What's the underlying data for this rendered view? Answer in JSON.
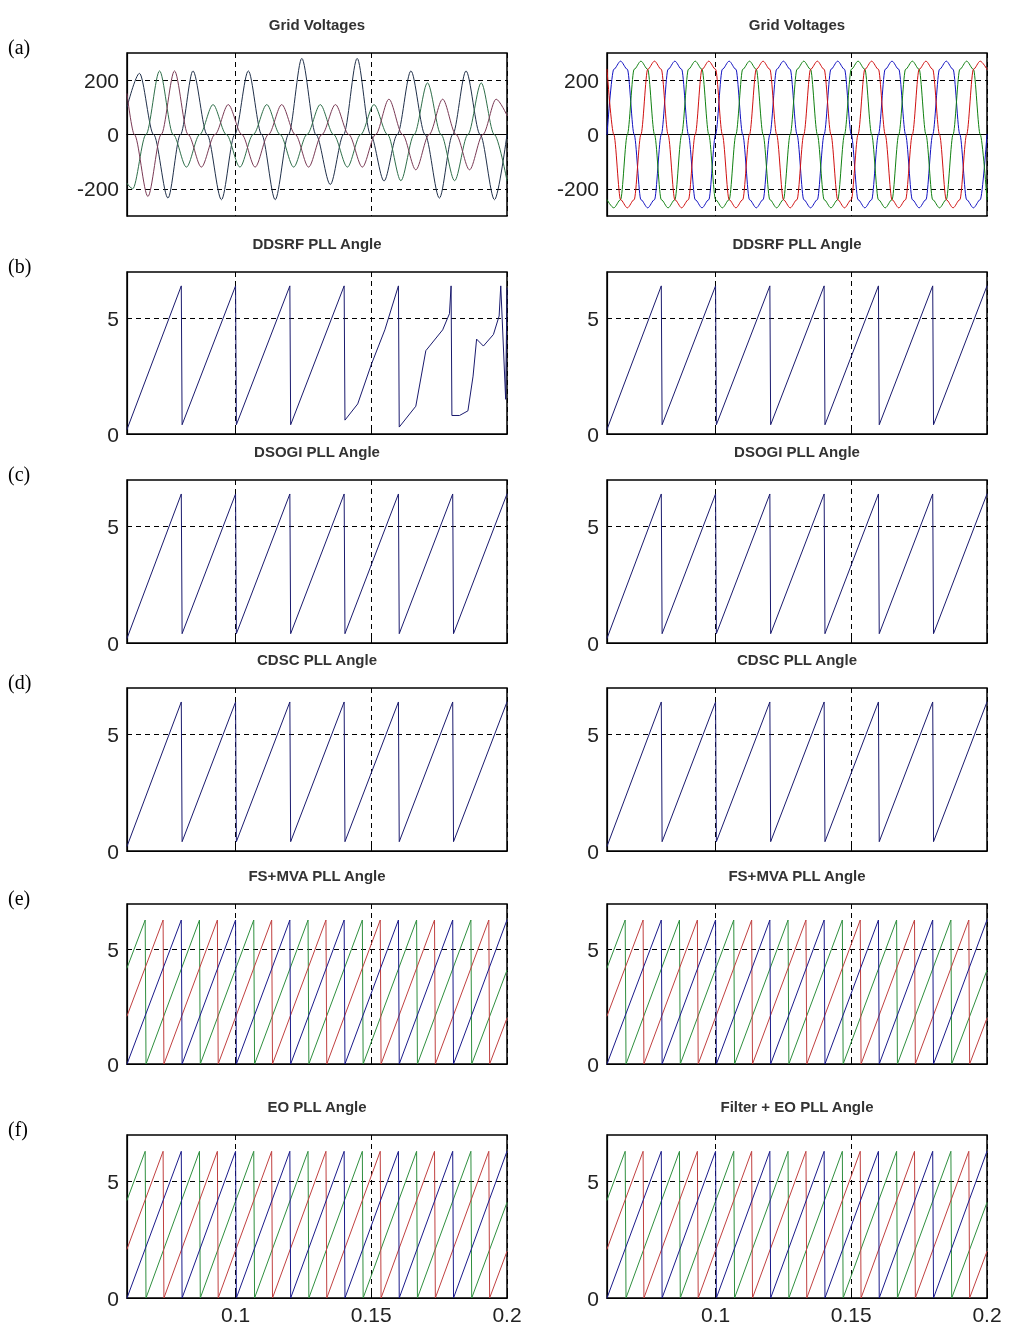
{
  "chart_data": [
    {
      "type": "line",
      "title": "Grid Voltages",
      "annotations": [
        "(a)"
      ],
      "xlim": [
        0.06,
        0.2
      ],
      "xticks": [
        0.1,
        0.15,
        0.2
      ],
      "ylim": [
        -300,
        300
      ],
      "yticks": [
        -200,
        0,
        200
      ],
      "grid": true,
      "tick_labels": "y",
      "series": [
        {
          "color": "#20304a",
          "x": [
            0.06,
            0.0646,
            0.0698,
            0.0751,
            0.0797,
            0.0843,
            0.0895,
            0.0948,
            0.0997,
            0.1047,
            0.1096,
            0.1146,
            0.1195,
            0.1244,
            0.1296,
            0.1349,
            0.1398,
            0.1448,
            0.1497,
            0.1547,
            0.1596,
            0.1646,
            0.1698,
            0.1751,
            0.18,
            0.1849,
            0.1901,
            0.1954,
            0.2
          ],
          "values": [
            100,
            225,
            0,
            -234,
            0,
            234,
            0,
            -240,
            0,
            234,
            0,
            -240,
            0,
            280,
            0,
            -184,
            0,
            280,
            0,
            -171,
            0,
            234,
            0,
            -234,
            0,
            234,
            0,
            -240,
            0
          ]
        },
        {
          "color": "#2f6f4a",
          "x": [
            0.06,
            0.0621,
            0.067,
            0.072,
            0.077,
            0.0819,
            0.0868,
            0.0917,
            0.0966,
            0.1016,
            0.1065,
            0.1115,
            0.1164,
            0.1214,
            0.1263,
            0.1312,
            0.1361,
            0.1412,
            0.1461,
            0.151,
            0.156,
            0.1609,
            0.1658,
            0.1707,
            0.1757,
            0.1807,
            0.1856,
            0.1905,
            0.1953,
            0.2
          ],
          "values": [
            -180,
            -200,
            0,
            234,
            0,
            -120,
            0,
            110,
            0,
            -120,
            0,
            110,
            0,
            -120,
            0,
            110,
            0,
            -120,
            0,
            110,
            0,
            -170,
            0,
            190,
            0,
            -170,
            0,
            190,
            0,
            -170
          ]
        },
        {
          "color": "#7a3a55",
          "x": [
            0.06,
            0.0627,
            0.0677,
            0.0726,
            0.0775,
            0.0825,
            0.0874,
            0.0924,
            0.0973,
            0.1023,
            0.1072,
            0.1121,
            0.117,
            0.122,
            0.1269,
            0.1318,
            0.1368,
            0.1417,
            0.1467,
            0.1516,
            0.1565,
            0.1615,
            0.1664,
            0.1713,
            0.1763,
            0.1812,
            0.1862,
            0.1911,
            0.196,
            0.2
          ],
          "values": [
            150,
            0,
            -228,
            0,
            234,
            0,
            -120,
            0,
            110,
            0,
            -120,
            0,
            110,
            0,
            -120,
            0,
            110,
            0,
            -120,
            0,
            130,
            0,
            -130,
            0,
            130,
            0,
            -130,
            0,
            130,
            70
          ]
        }
      ]
    },
    {
      "type": "line",
      "title": "Grid Voltages",
      "xlim": [
        0.06,
        0.2
      ],
      "xticks": [
        0.1,
        0.15,
        0.2
      ],
      "ylim": [
        -300,
        300
      ],
      "yticks": [
        -200,
        0,
        200
      ],
      "grid": true,
      "tick_labels": "y",
      "x": [
        0.06,
        0.0625,
        0.065,
        0.0675,
        0.07,
        0.0725,
        0.075,
        0.0775,
        0.08,
        0.0825,
        0.085,
        0.0875,
        0.09,
        0.0925,
        0.095,
        0.0975,
        0.1,
        0.1025,
        0.105,
        0.1075,
        0.11,
        0.1125,
        0.115,
        0.1175,
        0.12,
        0.1225,
        0.125,
        0.1275,
        0.13,
        0.1325,
        0.135,
        0.1375,
        0.14,
        0.1425,
        0.145,
        0.1475,
        0.15,
        0.1525,
        0.155,
        0.1575,
        0.16,
        0.1625,
        0.165,
        0.1675,
        0.17,
        0.1725,
        0.175,
        0.1775,
        0.18,
        0.1825,
        0.185,
        0.1875,
        0.19,
        0.1925,
        0.195,
        0.1975,
        0.2
      ],
      "series": [
        {
          "color": "#1010c0",
          "values": [
            0,
            240,
            270,
            240,
            0,
            -240,
            -270,
            -240,
            0,
            240,
            270,
            240,
            0,
            -240,
            -270,
            -240,
            0,
            240,
            270,
            240,
            0,
            -240,
            -270,
            -240,
            0,
            240,
            270,
            240,
            0,
            -240,
            -270,
            -240,
            0,
            240,
            270,
            240,
            0,
            -240,
            -270,
            -240,
            0,
            240,
            270,
            240,
            0,
            -240,
            -270,
            -240,
            0,
            240,
            270,
            240,
            0,
            -240,
            -270,
            -240,
            0
          ]
        },
        {
          "color": "#108010",
          "values": [
            -240,
            -270,
            -240,
            0,
            240,
            270,
            240,
            0,
            -240,
            -270,
            -240,
            0,
            240,
            270,
            240,
            0,
            -240,
            -270,
            -240,
            0,
            240,
            270,
            240,
            0,
            -240,
            -270,
            -240,
            0,
            240,
            270,
            240,
            0,
            -240,
            -270,
            -240,
            0,
            240,
            270,
            240,
            0,
            -240,
            -270,
            -240,
            0,
            240,
            270,
            240,
            0,
            -240,
            -270,
            -240,
            0,
            240,
            270,
            240,
            0,
            -240
          ]
        },
        {
          "color": "#d01010",
          "values": [
            240,
            0,
            -240,
            -270,
            -240,
            0,
            240,
            270,
            240,
            0,
            -240,
            -270,
            -240,
            0,
            240,
            270,
            240,
            0,
            -240,
            -270,
            -240,
            0,
            240,
            270,
            240,
            0,
            -240,
            -270,
            -240,
            0,
            240,
            270,
            240,
            0,
            -240,
            -270,
            -240,
            0,
            240,
            270,
            240,
            0,
            -240,
            -270,
            -240,
            0,
            240,
            270,
            240,
            0,
            -240,
            -270,
            -240,
            0,
            240,
            270,
            240
          ]
        }
      ]
    },
    {
      "type": "line",
      "title": "DDSRF PLL Angle",
      "annotations": [
        "(b)"
      ],
      "xlim": [
        0.06,
        0.2
      ],
      "xticks": [
        0.1,
        0.15,
        0.2
      ],
      "ylim": [
        0,
        7
      ],
      "yticks": [
        0,
        5
      ],
      "grid": true,
      "tick_labels": "y",
      "series": [
        {
          "color": "#1a1a6e",
          "x": [
            0.06,
            0.08,
            0.0803,
            0.1,
            0.1003,
            0.12,
            0.1203,
            0.14,
            0.1403,
            0.145,
            0.15,
            0.155,
            0.16,
            0.1603,
            0.1664,
            0.1701,
            0.1763,
            0.1788,
            0.1794,
            0.1797,
            0.1825,
            0.1856,
            0.1875,
            0.1888,
            0.1913,
            0.195,
            0.1971,
            0.1977,
            0.1995,
            0.2
          ],
          "values": [
            0.2,
            6.4,
            0.4,
            6.4,
            0.4,
            6.4,
            0.4,
            6.4,
            0.6,
            1.3,
            3.0,
            4.5,
            6.4,
            0.3,
            1.2,
            3.6,
            4.5,
            5.2,
            6.4,
            0.8,
            0.8,
            1.0,
            2.5,
            4.1,
            3.8,
            4.3,
            5.1,
            6.4,
            1.5,
            6.3
          ]
        }
      ]
    },
    {
      "type": "line",
      "title": "DDSRF PLL Angle",
      "xlim": [
        0.06,
        0.2
      ],
      "xticks": [
        0.1,
        0.15,
        0.2
      ],
      "ylim": [
        0,
        7
      ],
      "yticks": [
        0,
        5
      ],
      "grid": true,
      "tick_labels": "y",
      "series": [
        {
          "color": "#1a1a6e",
          "x": [
            0.06,
            0.08,
            0.0803,
            0.1,
            0.1003,
            0.12,
            0.1203,
            0.14,
            0.1403,
            0.16,
            0.1603,
            0.18,
            0.1803,
            0.2
          ],
          "values": [
            0.2,
            6.4,
            0.4,
            6.4,
            0.4,
            6.4,
            0.4,
            6.4,
            0.4,
            6.4,
            0.4,
            6.4,
            0.4,
            6.4
          ]
        }
      ]
    },
    {
      "type": "line",
      "title": "DSOGI PLL Angle",
      "annotations": [
        "(c)"
      ],
      "xlim": [
        0.06,
        0.2
      ],
      "xticks": [
        0.1,
        0.15,
        0.2
      ],
      "ylim": [
        0,
        7
      ],
      "yticks": [
        0,
        5
      ],
      "grid": true,
      "tick_labels": "y",
      "series": [
        {
          "color": "#1a1a6e",
          "x": [
            0.06,
            0.08,
            0.0803,
            0.1,
            0.1003,
            0.12,
            0.1203,
            0.14,
            0.1403,
            0.16,
            0.1603,
            0.18,
            0.1803,
            0.2
          ],
          "values": [
            0.2,
            6.4,
            0.4,
            6.4,
            0.4,
            6.4,
            0.4,
            6.4,
            0.4,
            6.4,
            0.4,
            6.4,
            0.4,
            6.4
          ]
        }
      ]
    },
    {
      "type": "line",
      "title": "DSOGI PLL Angle",
      "xlim": [
        0.06,
        0.2
      ],
      "xticks": [
        0.1,
        0.15,
        0.2
      ],
      "ylim": [
        0,
        7
      ],
      "yticks": [
        0,
        5
      ],
      "grid": true,
      "tick_labels": "y",
      "series": [
        {
          "color": "#1a1a6e",
          "x": [
            0.06,
            0.08,
            0.0803,
            0.1,
            0.1003,
            0.12,
            0.1203,
            0.14,
            0.1403,
            0.16,
            0.1603,
            0.18,
            0.1803,
            0.2
          ],
          "values": [
            0.2,
            6.4,
            0.4,
            6.4,
            0.4,
            6.4,
            0.4,
            6.4,
            0.4,
            6.4,
            0.4,
            6.4,
            0.4,
            6.4
          ]
        }
      ]
    },
    {
      "type": "line",
      "title": "CDSC PLL Angle",
      "annotations": [
        "(d)"
      ],
      "xlim": [
        0.06,
        0.2
      ],
      "xticks": [
        0.1,
        0.15,
        0.2
      ],
      "ylim": [
        0,
        7
      ],
      "yticks": [
        0,
        5
      ],
      "grid": true,
      "tick_labels": "y",
      "series": [
        {
          "color": "#1a1a6e",
          "x": [
            0.06,
            0.08,
            0.0803,
            0.1,
            0.1003,
            0.12,
            0.1203,
            0.14,
            0.1403,
            0.16,
            0.1603,
            0.18,
            0.1803,
            0.2
          ],
          "values": [
            0.2,
            6.4,
            0.4,
            6.4,
            0.4,
            6.4,
            0.4,
            6.4,
            0.4,
            6.4,
            0.4,
            6.4,
            0.4,
            6.4
          ]
        }
      ]
    },
    {
      "type": "line",
      "title": "CDSC PLL Angle",
      "xlim": [
        0.06,
        0.2
      ],
      "xticks": [
        0.1,
        0.15,
        0.2
      ],
      "ylim": [
        0,
        7
      ],
      "yticks": [
        0,
        5
      ],
      "grid": true,
      "tick_labels": "y",
      "series": [
        {
          "color": "#1a1a6e",
          "x": [
            0.06,
            0.08,
            0.0803,
            0.1,
            0.1003,
            0.12,
            0.1203,
            0.14,
            0.1403,
            0.16,
            0.1603,
            0.18,
            0.1803,
            0.2
          ],
          "values": [
            0.2,
            6.4,
            0.4,
            6.4,
            0.4,
            6.4,
            0.4,
            6.4,
            0.4,
            6.4,
            0.4,
            6.4,
            0.4,
            6.4
          ]
        }
      ]
    },
    {
      "type": "line",
      "title": "FS+MVA PLL Angle",
      "annotations": [
        "(e)"
      ],
      "xlim": [
        0.06,
        0.2
      ],
      "xticks": [
        0.1,
        0.15,
        0.2
      ],
      "ylim": [
        0,
        7
      ],
      "yticks": [
        0,
        5
      ],
      "grid": true,
      "tick_labels": "y",
      "series": [
        {
          "color": "#2f8f3f",
          "x": [
            0.06,
            0.0667,
            0.067,
            0.0867,
            0.087,
            0.1067,
            0.107,
            0.1267,
            0.127,
            0.1467,
            0.147,
            0.1667,
            0.167,
            0.1867,
            0.187,
            0.2
          ],
          "values": [
            4.2,
            6.3,
            0,
            6.3,
            0,
            6.3,
            0,
            6.3,
            0,
            6.3,
            0,
            6.3,
            0,
            6.3,
            0,
            4.1
          ]
        },
        {
          "color": "#c04040",
          "x": [
            0.06,
            0.0733,
            0.0736,
            0.0933,
            0.0936,
            0.1133,
            0.1136,
            0.1333,
            0.1336,
            0.1533,
            0.1536,
            0.1733,
            0.1736,
            0.1933,
            0.1936,
            0.2
          ],
          "values": [
            2.1,
            6.3,
            0,
            6.3,
            0,
            6.3,
            0,
            6.3,
            0,
            6.3,
            0,
            6.3,
            0,
            6.3,
            0,
            2.0
          ]
        },
        {
          "color": "#1a1a8a",
          "x": [
            0.06,
            0.08,
            0.0803,
            0.1,
            0.1003,
            0.12,
            0.1203,
            0.14,
            0.1403,
            0.16,
            0.1603,
            0.18,
            0.1803,
            0.2
          ],
          "values": [
            0,
            6.3,
            0,
            6.3,
            0,
            6.3,
            0,
            6.3,
            0,
            6.3,
            0,
            6.3,
            0,
            6.3
          ]
        }
      ]
    },
    {
      "type": "line",
      "title": "FS+MVA PLL Angle",
      "xlim": [
        0.06,
        0.2
      ],
      "xticks": [
        0.1,
        0.15,
        0.2
      ],
      "ylim": [
        0,
        7
      ],
      "yticks": [
        0,
        5
      ],
      "grid": true,
      "tick_labels": "y",
      "series": [
        {
          "color": "#2f8f3f",
          "x": [
            0.06,
            0.0667,
            0.067,
            0.0867,
            0.087,
            0.1067,
            0.107,
            0.1267,
            0.127,
            0.1467,
            0.147,
            0.1667,
            0.167,
            0.1867,
            0.187,
            0.2
          ],
          "values": [
            4.2,
            6.3,
            0,
            6.3,
            0,
            6.3,
            0,
            6.3,
            0,
            6.3,
            0,
            6.3,
            0,
            6.3,
            0,
            4.1
          ]
        },
        {
          "color": "#c04040",
          "x": [
            0.06,
            0.0733,
            0.0736,
            0.0933,
            0.0936,
            0.1133,
            0.1136,
            0.1333,
            0.1336,
            0.1533,
            0.1536,
            0.1733,
            0.1736,
            0.1933,
            0.1936,
            0.2
          ],
          "values": [
            2.1,
            6.3,
            0,
            6.3,
            0,
            6.3,
            0,
            6.3,
            0,
            6.3,
            0,
            6.3,
            0,
            6.3,
            0,
            2.0
          ]
        },
        {
          "color": "#1a1a8a",
          "x": [
            0.06,
            0.08,
            0.0803,
            0.1,
            0.1003,
            0.12,
            0.1203,
            0.14,
            0.1403,
            0.16,
            0.1603,
            0.18,
            0.1803,
            0.2
          ],
          "values": [
            0,
            6.3,
            0,
            6.3,
            0,
            6.3,
            0,
            6.3,
            0,
            6.3,
            0,
            6.3,
            0,
            6.3
          ]
        }
      ]
    },
    {
      "type": "line",
      "title": "EO PLL Angle",
      "annotations": [
        "(f)"
      ],
      "xlim": [
        0.06,
        0.2
      ],
      "xticks": [
        0.1,
        0.15,
        0.2
      ],
      "ylim": [
        0,
        7
      ],
      "yticks": [
        0,
        5
      ],
      "grid": true,
      "series": [
        {
          "color": "#2f8f3f",
          "x": [
            0.06,
            0.0667,
            0.067,
            0.0867,
            0.087,
            0.1067,
            0.107,
            0.1267,
            0.127,
            0.1467,
            0.147,
            0.1667,
            0.167,
            0.1867,
            0.187,
            0.2
          ],
          "values": [
            4.2,
            6.3,
            0,
            6.3,
            0,
            6.3,
            0,
            6.3,
            0,
            6.3,
            0,
            6.3,
            0,
            6.3,
            0,
            4.1
          ]
        },
        {
          "color": "#c04040",
          "x": [
            0.06,
            0.0733,
            0.0736,
            0.0933,
            0.0936,
            0.1133,
            0.1136,
            0.1333,
            0.1336,
            0.1533,
            0.1536,
            0.1733,
            0.1736,
            0.1933,
            0.1936,
            0.2
          ],
          "values": [
            2.1,
            6.3,
            0,
            6.3,
            0,
            6.3,
            0,
            6.3,
            0,
            6.3,
            0,
            6.3,
            0,
            6.3,
            0,
            2.0
          ]
        },
        {
          "color": "#1a1a8a",
          "x": [
            0.06,
            0.08,
            0.0803,
            0.1,
            0.1003,
            0.12,
            0.1203,
            0.14,
            0.1403,
            0.16,
            0.1603,
            0.18,
            0.1803,
            0.2
          ],
          "values": [
            0,
            6.3,
            0,
            6.3,
            0,
            6.3,
            0,
            6.3,
            0,
            6.3,
            0,
            6.3,
            0,
            6.3
          ]
        }
      ]
    },
    {
      "type": "line",
      "title": "Filter + EO PLL Angle",
      "xlim": [
        0.06,
        0.2
      ],
      "xticks": [
        0.1,
        0.15,
        0.2
      ],
      "ylim": [
        0,
        7
      ],
      "yticks": [
        0,
        5
      ],
      "grid": true,
      "series": [
        {
          "color": "#2f8f3f",
          "x": [
            0.06,
            0.0667,
            0.067,
            0.0867,
            0.087,
            0.1067,
            0.107,
            0.1267,
            0.127,
            0.1467,
            0.147,
            0.1667,
            0.167,
            0.1867,
            0.187,
            0.2
          ],
          "values": [
            4.2,
            6.3,
            0,
            6.3,
            0,
            6.3,
            0,
            6.3,
            0,
            6.3,
            0,
            6.3,
            0,
            6.3,
            0,
            4.1
          ]
        },
        {
          "color": "#c04040",
          "x": [
            0.06,
            0.0733,
            0.0736,
            0.0933,
            0.0936,
            0.1133,
            0.1136,
            0.1333,
            0.1336,
            0.1533,
            0.1536,
            0.1733,
            0.1736,
            0.1933,
            0.1936,
            0.2
          ],
          "values": [
            2.1,
            6.3,
            0,
            6.3,
            0,
            6.3,
            0,
            6.3,
            0,
            6.3,
            0,
            6.3,
            0,
            6.3,
            0,
            2.0
          ]
        },
        {
          "color": "#1a1a8a",
          "x": [
            0.06,
            0.08,
            0.0803,
            0.1,
            0.1003,
            0.12,
            0.1203,
            0.14,
            0.1403,
            0.16,
            0.1603,
            0.18,
            0.1803,
            0.2
          ],
          "values": [
            0,
            6.3,
            0,
            6.3,
            0,
            6.3,
            0,
            6.3,
            0,
            6.3,
            0,
            6.3,
            0,
            6.3
          ]
        }
      ]
    }
  ]
}
